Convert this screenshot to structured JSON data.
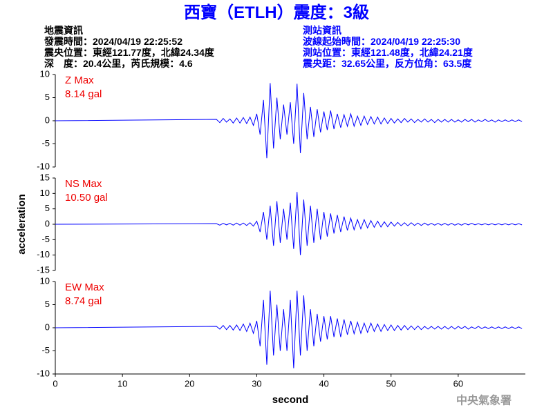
{
  "header": {
    "title": "西寶（ETLH）震度：3級",
    "left": [
      "地震資訊",
      "發震時間：2024/04/19 22:25:52",
      "震央位置：東經121.77度，北緯24.34度",
      "深　度：20.4公里，芮氏規模：4.6"
    ],
    "right": [
      "測站資訊",
      "波線起始時間：2024/04/19 22:25:30",
      "測站位置：東經121.48度，北緯24.21度",
      "震央距：32.65公里，反方位角：63.5度"
    ],
    "watermark": "中央氣象署"
  },
  "chart_data": [
    {
      "type": "line",
      "label": "Z Max",
      "max_label": "8.14 gal",
      "color": "#0000ff",
      "xlim": [
        0,
        70
      ],
      "ylim": [
        -10,
        10
      ],
      "yticks": [
        -10,
        -5,
        0,
        5,
        10
      ],
      "x": [
        0,
        24,
        24.5,
        25,
        25.5,
        26,
        26.5,
        27,
        27.5,
        28,
        28.5,
        29,
        29.5,
        30,
        30.5,
        31,
        31.5,
        32,
        32.5,
        33,
        33.5,
        34,
        34.5,
        35,
        35.5,
        36,
        36.5,
        37,
        37.5,
        38,
        38.5,
        39,
        39.5,
        40,
        40.5,
        41,
        41.5,
        42,
        42.5,
        43,
        43.5,
        44,
        44.5,
        45,
        45.5,
        46,
        46.5,
        47,
        47.5,
        48,
        48.5,
        49,
        49.5,
        50,
        50.5,
        51,
        51.5,
        52,
        52.5,
        53,
        53.5,
        54,
        54.5,
        55,
        55.5,
        56,
        56.5,
        57,
        57.5,
        58,
        58.5,
        59,
        59.5,
        60,
        60.5,
        61,
        61.5,
        62,
        62.5,
        63,
        63.5,
        64,
        64.5,
        65,
        65.5,
        66,
        66.5,
        67,
        67.5,
        68,
        68.5,
        69,
        69.5
      ],
      "values": [
        0,
        0.3,
        -0.4,
        0.5,
        -0.3,
        0.4,
        -0.5,
        0.6,
        -0.5,
        0.7,
        -0.6,
        0.8,
        -1,
        1.5,
        -3,
        4.5,
        -8.1,
        8.14,
        -6,
        5,
        -4,
        3.5,
        -3,
        4,
        -5,
        8,
        -7,
        6,
        -4,
        3,
        -3.5,
        2.5,
        -2.5,
        2,
        -2,
        2.2,
        -1.8,
        1.5,
        -1.5,
        1.3,
        -1.2,
        1.5,
        -1.2,
        1,
        -1,
        1,
        -0.8,
        0.9,
        -0.7,
        0.8,
        -0.7,
        0.6,
        -0.6,
        0.5,
        -0.5,
        0.4,
        -0.4,
        0.5,
        -0.3,
        0.4,
        -0.4,
        0.3,
        -0.3,
        0.4,
        -0.3,
        0.3,
        -0.4,
        0.3,
        -0.3,
        0.3,
        -0.3,
        0.3,
        -0.3,
        0.2,
        -0.3,
        0.3,
        -0.2,
        0.3,
        -0.3,
        0.2,
        -0.2,
        0.3,
        -0.2,
        0.2,
        -0.3,
        0.2,
        -0.2,
        0.2,
        -0.2,
        0.2,
        -0.2,
        0.2,
        -0.2
      ]
    },
    {
      "type": "line",
      "label": "NS Max",
      "max_label": "10.50 gal",
      "color": "#0000ff",
      "xlim": [
        0,
        70
      ],
      "ylim": [
        -15,
        15
      ],
      "yticks": [
        -15,
        -10,
        -5,
        0,
        5,
        10,
        15
      ],
      "ylabel": "acceleration",
      "x": [
        0,
        24,
        24.5,
        25,
        25.5,
        26,
        26.5,
        27,
        27.5,
        28,
        28.5,
        29,
        29.5,
        30,
        30.5,
        31,
        31.5,
        32,
        32.5,
        33,
        33.5,
        34,
        34.5,
        35,
        35.5,
        36,
        36.5,
        37,
        37.5,
        38,
        38.5,
        39,
        39.5,
        40,
        40.5,
        41,
        41.5,
        42,
        42.5,
        43,
        43.5,
        44,
        44.5,
        45,
        45.5,
        46,
        46.5,
        47,
        47.5,
        48,
        48.5,
        49,
        49.5,
        50,
        50.5,
        51,
        51.5,
        52,
        52.5,
        53,
        53.5,
        54,
        54.5,
        55,
        55.5,
        56,
        56.5,
        57,
        57.5,
        58,
        58.5,
        59,
        59.5,
        60,
        60.5,
        61,
        61.5,
        62,
        62.5,
        63,
        63.5,
        64,
        64.5,
        65,
        65.5,
        66,
        66.5,
        67,
        67.5,
        68,
        68.5,
        69,
        69.5
      ],
      "values": [
        0,
        0.2,
        -0.3,
        0.3,
        -0.2,
        0.3,
        -0.3,
        0.4,
        -0.3,
        0.4,
        -0.4,
        0.5,
        -0.6,
        1,
        -2.5,
        4,
        -5,
        6,
        -7,
        7.5,
        -6,
        5,
        -5,
        7,
        -8,
        10.5,
        -10,
        8,
        -7,
        6,
        -6,
        5,
        -5,
        4,
        -4,
        3.5,
        -3,
        3,
        -2.5,
        2.5,
        -2,
        2,
        -1.8,
        1.5,
        -1.5,
        1.5,
        -1.2,
        1.2,
        -1,
        1,
        -0.9,
        0.8,
        -0.8,
        0.7,
        -0.6,
        0.6,
        -0.5,
        0.5,
        -0.5,
        0.5,
        -0.4,
        0.4,
        -0.4,
        0.4,
        -0.3,
        0.3,
        -0.3,
        0.3,
        -0.3,
        0.3,
        -0.3,
        0.3,
        -0.3,
        0.2,
        -0.3,
        0.3,
        -0.2,
        0.3,
        -0.2,
        0.2,
        -0.2,
        0.2,
        -0.2,
        0.2,
        -0.2,
        0.2,
        -0.2,
        0.2,
        -0.2,
        0.2,
        -0.2,
        0.2,
        -0.2
      ]
    },
    {
      "type": "line",
      "label": "EW Max",
      "max_label": "8.74 gal",
      "color": "#0000ff",
      "xlim": [
        0,
        70
      ],
      "ylim": [
        -10,
        10
      ],
      "yticks": [
        -10,
        -5,
        0,
        5,
        10
      ],
      "xticks": [
        0,
        10,
        20,
        30,
        40,
        50,
        60
      ],
      "xlabel": "second",
      "x": [
        0,
        24,
        24.5,
        25,
        25.5,
        26,
        26.5,
        27,
        27.5,
        28,
        28.5,
        29,
        29.5,
        30,
        30.5,
        31,
        31.5,
        32,
        32.5,
        33,
        33.5,
        34,
        34.5,
        35,
        35.5,
        36,
        36.5,
        37,
        37.5,
        38,
        38.5,
        39,
        39.5,
        40,
        40.5,
        41,
        41.5,
        42,
        42.5,
        43,
        43.5,
        44,
        44.5,
        45,
        45.5,
        46,
        46.5,
        47,
        47.5,
        48,
        48.5,
        49,
        49.5,
        50,
        50.5,
        51,
        51.5,
        52,
        52.5,
        53,
        53.5,
        54,
        54.5,
        55,
        55.5,
        56,
        56.5,
        57,
        57.5,
        58,
        58.5,
        59,
        59.5,
        60,
        60.5,
        61,
        61.5,
        62,
        62.5,
        63,
        63.5,
        64,
        64.5,
        65,
        65.5,
        66,
        66.5,
        67,
        67.5,
        68,
        68.5,
        69,
        69.5
      ],
      "values": [
        0,
        0.3,
        -0.3,
        0.5,
        -0.4,
        0.5,
        -0.5,
        0.6,
        -0.6,
        0.8,
        -0.8,
        1,
        -1.2,
        1.5,
        -4,
        6,
        -8,
        8,
        -6,
        5,
        -5,
        4,
        -5,
        6,
        -8.74,
        8,
        -6,
        7,
        -5,
        4,
        -4,
        3,
        -3,
        2.5,
        -2.5,
        2.5,
        -2,
        2,
        -2,
        1.8,
        -1.5,
        1.5,
        -1.3,
        1.2,
        -1.2,
        1,
        -1,
        1,
        -0.8,
        0.8,
        -0.8,
        0.7,
        -0.6,
        0.6,
        -0.6,
        0.5,
        -0.5,
        0.5,
        -0.4,
        0.4,
        -0.4,
        0.4,
        -0.4,
        0.3,
        -0.3,
        0.3,
        -0.3,
        0.3,
        -0.3,
        0.3,
        -0.3,
        0.3,
        -0.3,
        0.3,
        -0.2,
        0.3,
        -0.3,
        0.2,
        -0.2,
        0.3,
        -0.2,
        0.2,
        -0.2,
        0.2,
        -0.2,
        0.2,
        -0.2,
        0.2,
        -0.2,
        0.2,
        -0.2,
        0.2,
        -0.2
      ]
    }
  ]
}
